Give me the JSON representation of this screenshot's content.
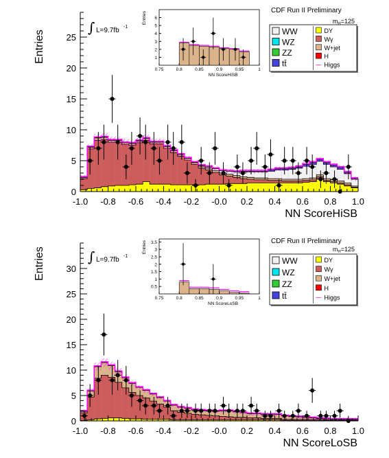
{
  "chart_data": [
    {
      "type": "histogram",
      "experiment_label": "CDF Run II Preliminary",
      "lumi_label": "L=9.7fb",
      "lumi_superscript": "-1",
      "mass_label": "m",
      "mass_sub": "H",
      "mass_value": "=125",
      "xlabel": "NN ScoreHiSB",
      "ylabel": "Entries",
      "xlim": [
        -1.0,
        1.0
      ],
      "ylim": [
        0,
        29
      ],
      "x_ticks": [
        "-1.0",
        "-0.8",
        "-0.6",
        "-0.4",
        "-0.2",
        "-0.0",
        "0.2",
        "0.4",
        "0.6",
        "0.8",
        "1.0"
      ],
      "y_ticks": [
        0,
        5,
        10,
        15,
        20,
        25
      ],
      "legend_left": [
        {
          "name": "WW",
          "color": "#f2f2f2"
        },
        {
          "name": "WZ",
          "color": "#00e5ee"
        },
        {
          "name": "ZZ",
          "color": "#33cc33"
        },
        {
          "name": "tt̄",
          "color": "#4444dd"
        }
      ],
      "legend_right": [
        {
          "name": "DY",
          "color": "#ffff00"
        },
        {
          "name": "Wγ",
          "color": "#cd5c5c"
        },
        {
          "name": "W+jet",
          "color": "#dcb48c"
        },
        {
          "name": "H",
          "color": "#ff0000"
        },
        {
          "name": "Higgs",
          "color": "#ff66cc"
        }
      ],
      "bins": 40,
      "dy": [
        0.3,
        0.5,
        0.6,
        0.8,
        0.9,
        1.0,
        1.0,
        1.1,
        1.2,
        1.6,
        1.2,
        1.2,
        1.2,
        1.1,
        1.1,
        1.1,
        1.1,
        1.1,
        1.2,
        1.2,
        1.2,
        1.3,
        1.3,
        1.3,
        1.4,
        1.4,
        1.4,
        1.4,
        1.4,
        1.4,
        1.4,
        1.4,
        1.5,
        1.6,
        2.1,
        1.6,
        1.4,
        1.2,
        0.9,
        0.6
      ],
      "wg": [
        1.8,
        6.4,
        7.7,
        7.6,
        7.1,
        7.0,
        6.6,
        6.4,
        6.7,
        6.7,
        6.5,
        6.5,
        5.8,
        5.2,
        4.6,
        4.0,
        3.3,
        2.7,
        2.3,
        1.9,
        1.5,
        1.2,
        1.0,
        0.8,
        0.6,
        0.5,
        0.5,
        0.4,
        0.4,
        0.3,
        0.3,
        0.3,
        0.3,
        0.3,
        0.3,
        0.2,
        0.2,
        0.2,
        0.2,
        0.1
      ],
      "wjet": [
        0.2,
        0.3,
        0.4,
        0.4,
        0.3,
        0.3,
        0.3,
        0.3,
        0.3,
        0.3,
        0.3,
        0.3,
        0.3,
        0.3,
        0.3,
        0.3,
        0.3,
        0.3,
        0.3,
        0.3,
        0.3,
        0.3,
        0.3,
        0.3,
        0.3,
        0.3,
        0.3,
        0.3,
        0.3,
        0.3,
        0.3,
        0.3,
        0.3,
        0.3,
        0.3,
        0.3,
        0.3,
        0.3,
        0.3,
        0.2
      ],
      "ww": [
        0,
        0,
        0,
        0,
        0,
        0,
        0,
        0,
        0,
        0,
        0,
        0,
        0,
        0,
        0,
        0,
        0,
        0.1,
        0.2,
        0.3,
        0.4,
        0.5,
        0.6,
        0.8,
        0.9,
        1.0,
        1.0,
        1.2,
        1.4,
        1.5,
        1.6,
        1.8,
        2.0,
        2.2,
        2.2,
        2.3,
        2.1,
        1.9,
        1.5,
        1.1
      ],
      "small": [
        0,
        0,
        0,
        0,
        0,
        0,
        0,
        0,
        0,
        0,
        0,
        0,
        0,
        0,
        0,
        0,
        0,
        0,
        0,
        0,
        0,
        0,
        0,
        0.1,
        0.1,
        0.1,
        0.1,
        0.2,
        0.2,
        0.2,
        0.2,
        0.2,
        0.3,
        0.3,
        0.3,
        0.3,
        0.3,
        0.3,
        0.2,
        0.1
      ],
      "data_x": [
        -0.93,
        -0.87,
        -0.83,
        -0.77,
        -0.73,
        -0.67,
        -0.63,
        -0.57,
        -0.53,
        -0.47,
        -0.43,
        -0.37,
        -0.33,
        -0.27,
        -0.23,
        -0.17,
        -0.13,
        -0.07,
        -0.03,
        0.03,
        0.07,
        0.13,
        0.17,
        0.23,
        0.27,
        0.33,
        0.37,
        0.43,
        0.47,
        0.53,
        0.57,
        0.63,
        0.67,
        0.73,
        0.77,
        0.83,
        0.87,
        0.93
      ],
      "data_y": [
        5,
        7,
        8,
        15,
        8,
        4,
        7,
        9,
        8,
        7,
        5,
        8,
        7,
        8,
        3,
        1,
        5,
        3,
        7,
        3,
        1,
        4,
        3,
        5,
        7,
        4,
        6,
        1,
        5,
        5,
        3,
        5,
        4,
        2,
        3,
        2,
        0,
        4
      ],
      "inset": {
        "xlabel": "NN ScoreHiSB",
        "ylabel": "Entries",
        "xlim": [
          0.75,
          1.0
        ],
        "ylim": [
          0,
          7
        ],
        "x_ticks": [
          "0.75",
          "0.8",
          "0.85",
          "0.9",
          "0.95",
          "1"
        ],
        "y_ticks": [
          1,
          2,
          3,
          4,
          5,
          6
        ],
        "bin_edges": [
          0.8,
          0.825,
          0.85,
          0.875,
          0.9,
          0.925,
          0.95,
          0.975
        ],
        "bkg": [
          2.8,
          2.5,
          2.4,
          2.3,
          2.1,
          2.0,
          1.7
        ],
        "data_x": [
          0.81,
          0.835,
          0.86,
          0.885,
          0.91,
          0.94,
          0.96
        ],
        "data_y": [
          2,
          3,
          1,
          4,
          2,
          2,
          1
        ]
      }
    },
    {
      "type": "histogram",
      "experiment_label": "CDF Run II Preliminary",
      "lumi_label": "L=9.7fb",
      "lumi_superscript": "-1",
      "mass_label": "m",
      "mass_sub": "H",
      "mass_value": "=125",
      "xlabel": "NN ScoreLoSB",
      "ylabel": "Entries",
      "xlim": [
        -1.0,
        1.0
      ],
      "ylim": [
        0,
        35
      ],
      "x_ticks": [
        "-1.0",
        "-0.8",
        "-0.6",
        "-0.4",
        "-0.2",
        "-0.0",
        "0.2",
        "0.4",
        "0.6",
        "0.8",
        "1.0"
      ],
      "y_ticks": [
        0,
        5,
        10,
        15,
        20,
        25,
        30
      ],
      "legend_left": [
        {
          "name": "WW",
          "color": "#f2f2f2"
        },
        {
          "name": "WZ",
          "color": "#00e5ee"
        },
        {
          "name": "ZZ",
          "color": "#33cc33"
        },
        {
          "name": "tt̄",
          "color": "#4444dd"
        }
      ],
      "legend_right": [
        {
          "name": "DY",
          "color": "#ffff00"
        },
        {
          "name": "Wγ",
          "color": "#cd5c5c"
        },
        {
          "name": "W+jet",
          "color": "#dcb48c"
        },
        {
          "name": "H",
          "color": "#ff0000"
        },
        {
          "name": "Higgs",
          "color": "#ff66cc"
        }
      ],
      "bins": 40,
      "dy": [
        0.1,
        0.2,
        0.4,
        0.5,
        0.6,
        0.6,
        0.5,
        0.4,
        0.4,
        0.3,
        0.3,
        0.3,
        0.3,
        0.2,
        0.2,
        0.2,
        0.2,
        0.2,
        0.2,
        0.2,
        0.2,
        0.2,
        0.2,
        0.2,
        0.2,
        0.2,
        0.2,
        0.2,
        0.2,
        0.1,
        0.1,
        0.1,
        0.1,
        0.1,
        0.1,
        0.1,
        0.1,
        0.1,
        0.1,
        0.1
      ],
      "wg": [
        1.5,
        4.5,
        8.0,
        8.5,
        8.0,
        7.0,
        6.0,
        5.2,
        4.6,
        4.2,
        3.6,
        3.0,
        2.4,
        1.8,
        1.5,
        1.3,
        1.1,
        1.0,
        0.9,
        0.8,
        0.7,
        0.6,
        0.5,
        0.5,
        0.4,
        0.4,
        0.3,
        0.3,
        0.3,
        0.2,
        0.2,
        0.2,
        0.2,
        0.2,
        0.2,
        0.1,
        0.1,
        0.1,
        0.1,
        0.1
      ],
      "wjet": [
        0.3,
        1.2,
        2.3,
        2.5,
        2.3,
        2.1,
        2.0,
        1.8,
        1.6,
        1.5,
        1.4,
        1.3,
        1.2,
        1.1,
        1.0,
        1.0,
        0.9,
        0.9,
        0.9,
        0.9,
        1.1,
        1.2,
        1.1,
        0.9,
        0.8,
        0.8,
        0.8,
        0.8,
        0.8,
        0.7,
        0.6,
        0.5,
        0.4,
        0.3,
        0.2,
        0.2,
        0.1,
        0.1,
        0.1,
        0.1
      ],
      "ww": [
        0,
        0,
        0,
        0,
        0,
        0,
        0,
        0,
        0,
        0,
        0,
        0,
        0,
        0,
        0,
        0,
        0,
        0,
        0,
        0,
        0,
        0,
        0,
        0,
        0,
        0,
        0,
        0,
        0,
        0,
        0,
        0,
        0,
        0,
        0,
        0,
        0,
        0,
        0,
        0
      ],
      "small": [
        0,
        0,
        0,
        0,
        0,
        0,
        0,
        0,
        0,
        0,
        0,
        0,
        0,
        0,
        0,
        0,
        0,
        0,
        0,
        0,
        0,
        0,
        0,
        0,
        0,
        0,
        0,
        0,
        0,
        0,
        0,
        0,
        0,
        0,
        0,
        0,
        0,
        0,
        0,
        0
      ],
      "data_x": [
        -0.97,
        -0.93,
        -0.87,
        -0.83,
        -0.77,
        -0.73,
        -0.67,
        -0.63,
        -0.57,
        -0.53,
        -0.47,
        -0.43,
        -0.37,
        -0.33,
        -0.27,
        -0.23,
        -0.17,
        -0.13,
        -0.07,
        -0.03,
        0.03,
        0.07,
        0.13,
        0.17,
        0.23,
        0.27,
        0.33,
        0.37,
        0.43,
        0.47,
        0.53,
        0.57,
        0.63,
        0.67,
        0.73,
        0.77,
        0.83,
        0.87,
        0.93
      ],
      "data_y": [
        1,
        5,
        8,
        17,
        8,
        9,
        8,
        5,
        4,
        3,
        3,
        2,
        3,
        1,
        2,
        2,
        2,
        2,
        2,
        2,
        3,
        2,
        2,
        2,
        3,
        2,
        1,
        1,
        2,
        1,
        1,
        2,
        1,
        6,
        1,
        1,
        1,
        2,
        0
      ],
      "inset": {
        "xlabel": "NN ScoreLoSB",
        "ylabel": "Entries",
        "xlim": [
          0.75,
          1.0
        ],
        "ylim": [
          0,
          3.7
        ],
        "x_ticks": [
          "0.75",
          "0.8",
          "0.85",
          "0.9",
          "0.95",
          "1"
        ],
        "y_ticks": [
          0.5,
          1,
          1.5,
          2,
          2.5,
          3,
          3.5
        ],
        "bin_edges": [
          0.8,
          0.825,
          0.85,
          0.875,
          0.9,
          0.925,
          0.95,
          0.975
        ],
        "bkg": [
          0.8,
          0.35,
          0.35,
          0.3,
          0.2,
          0.1,
          0.05
        ],
        "data_x": [
          0.81,
          0.885
        ],
        "data_y": [
          2,
          1
        ]
      }
    }
  ]
}
